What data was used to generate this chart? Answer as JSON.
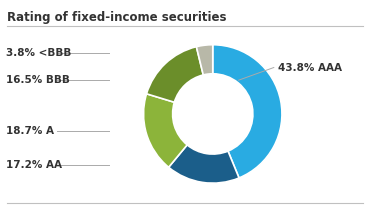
{
  "title": "Rating of fixed-income securities",
  "slices": [
    43.8,
    17.2,
    18.7,
    16.5,
    3.8
  ],
  "labels": [
    "AAA",
    "AA",
    "A",
    "BBB",
    "<BBB"
  ],
  "colors": [
    "#29ABE2",
    "#1B5E8A",
    "#8CB43A",
    "#6B8E2A",
    "#B8B8A8"
  ],
  "label_texts_left": [
    "3.8% <BBB",
    "16.5% BBB",
    "18.7% A",
    "17.2% AA"
  ],
  "label_text_right": "43.8% AAA",
  "bg_color": "#FFFFFF",
  "title_color": "#333333",
  "label_color": "#333333",
  "title_fontsize": 8.5,
  "label_fontsize": 7.5
}
